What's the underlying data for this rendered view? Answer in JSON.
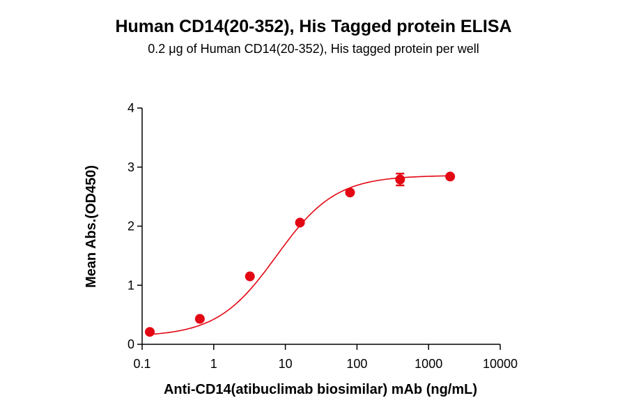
{
  "chart_data": {
    "type": "scatter",
    "title": "Human CD14(20-352), His Tagged protein ELISA",
    "subtitle": "0.2 μg of Human CD14(20-352), His tagged protein per well",
    "xlabel": "Anti-CD14(atibuclimab biosimilar) mAb (ng/mL)",
    "ylabel": "Mean Abs.(OD450)",
    "xscale": "log",
    "xlim": [
      0.1,
      10000
    ],
    "ylim": [
      0,
      4
    ],
    "x_ticks": [
      "0.1",
      "1",
      "10",
      "100",
      "1000",
      "10000"
    ],
    "y_ticks": [
      "0",
      "1",
      "2",
      "3",
      "4"
    ],
    "grid": false,
    "color": "#e30613",
    "points": [
      {
        "x": 0.128,
        "y": 0.21,
        "err": 0.02
      },
      {
        "x": 0.64,
        "y": 0.43,
        "err": 0.02
      },
      {
        "x": 3.2,
        "y": 1.15,
        "err": 0.02
      },
      {
        "x": 16,
        "y": 2.06,
        "err": 0.02
      },
      {
        "x": 80,
        "y": 2.57,
        "err": 0.02
      },
      {
        "x": 400,
        "y": 2.79,
        "err": 0.1
      },
      {
        "x": 2000,
        "y": 2.84,
        "err": 0.02
      }
    ],
    "fit": {
      "model": "4PL",
      "bottom": 0.13,
      "top": 2.86,
      "ec50": 7.5,
      "hill": 1.05
    }
  }
}
